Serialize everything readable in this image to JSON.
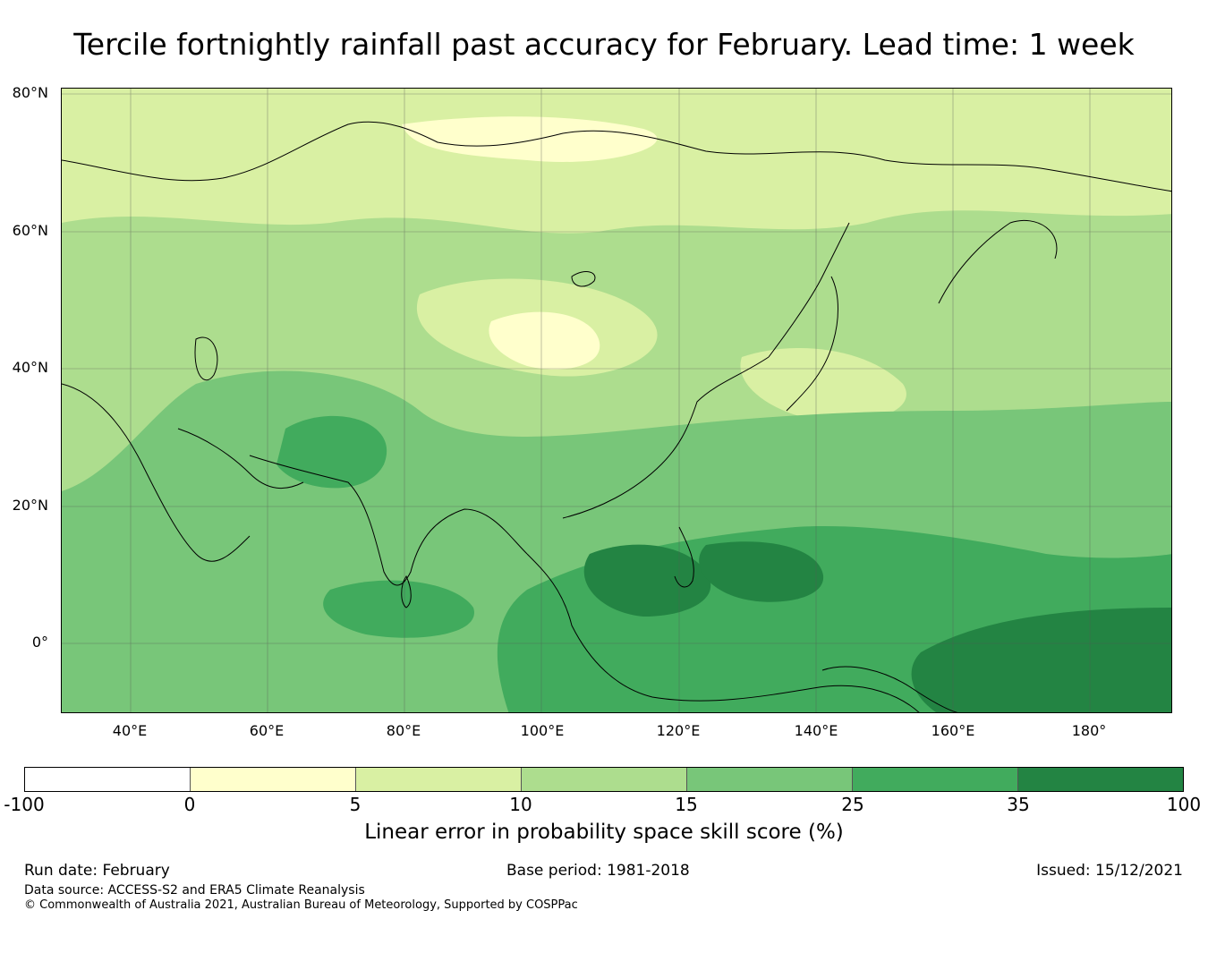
{
  "title": "Tercile fortnightly rainfall past accuracy for February. Lead time: 1 week",
  "map": {
    "lat_labels": [
      "80°N",
      "60°N",
      "40°N",
      "20°N",
      "0°"
    ],
    "lon_labels": [
      "40°E",
      "60°E",
      "80°E",
      "100°E",
      "120°E",
      "140°E",
      "160°E",
      "180°"
    ],
    "lon_range_deg": [
      30,
      192
    ],
    "lat_range_deg": [
      -10.5,
      80
    ]
  },
  "colorbar": {
    "ticks": [
      "-100",
      "0",
      "5",
      "10",
      "15",
      "25",
      "35",
      "100"
    ],
    "colors": [
      "#ffffff",
      "#ffffcc",
      "#d9f0a3",
      "#addd8e",
      "#78c679",
      "#41ab5d",
      "#238443"
    ],
    "label": "Linear error in probability space skill score (%)"
  },
  "footer": {
    "run_date": "Run date: February",
    "base_period": "Base period: 1981-2018",
    "issued": "Issued: 15/12/2021",
    "data_source": "Data source: ACCESS-S2 and ERA5 Climate Reanalysis",
    "copyright": "© Commonwealth of Australia 2021, Australian Bureau of Meteorology, Supported by COSPPac"
  }
}
